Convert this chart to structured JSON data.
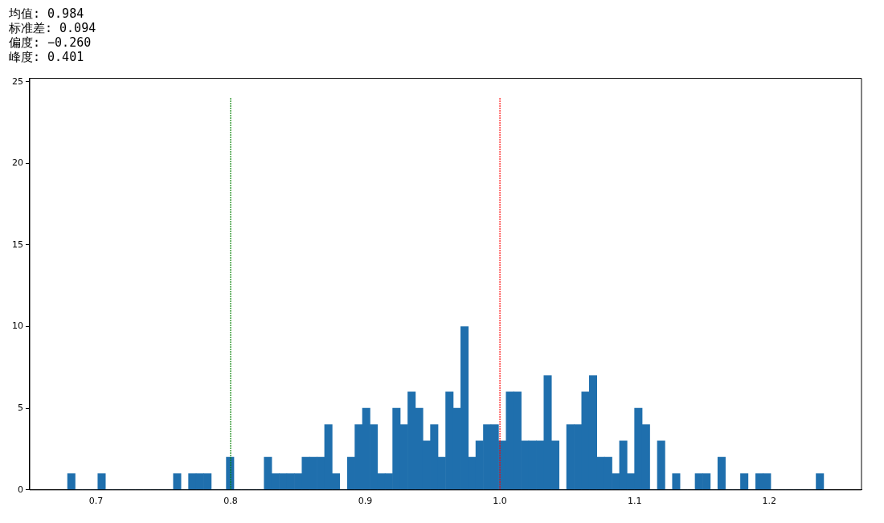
{
  "chart_data": {
    "type": "histogram",
    "annotations": [
      "均值: 0.984",
      "标准差: 0.094",
      "偏度: −0.260",
      "峰度: 0.401"
    ],
    "bins": [
      0.6789,
      0.6845,
      0.6901,
      0.6957,
      0.7014,
      0.707,
      0.7126,
      0.7182,
      0.7238,
      0.7294,
      0.7351,
      0.7407,
      0.7463,
      0.7519,
      0.7575,
      0.7631,
      0.7687,
      0.7744,
      0.78,
      0.7856,
      0.7912,
      0.7968,
      0.8024,
      0.808,
      0.8137,
      0.8193,
      0.8249,
      0.8305,
      0.8361,
      0.8417,
      0.8474,
      0.853,
      0.8586,
      0.8642,
      0.8698,
      0.8754,
      0.881,
      0.8867,
      0.8923,
      0.8979,
      0.9035,
      0.9091,
      0.9147,
      0.9203,
      0.926,
      0.9316,
      0.9372,
      0.9428,
      0.9484,
      0.954,
      0.9597,
      0.9653,
      0.9709,
      0.9765,
      0.9821,
      0.9877,
      0.9933,
      0.999,
      1.0046,
      1.0102,
      1.0158,
      1.0214,
      1.027,
      1.0326,
      1.0383,
      1.0439,
      1.0495,
      1.0551,
      1.0607,
      1.0663,
      1.072,
      1.0776,
      1.0832,
      1.0888,
      1.0944,
      1.1,
      1.1056,
      1.1113,
      1.1169,
      1.1225,
      1.1281,
      1.1337,
      1.1393,
      1.1449,
      1.1506,
      1.1562,
      1.1618,
      1.1674,
      1.173,
      1.1786,
      1.1843,
      1.1899,
      1.1955,
      1.2011,
      1.2067,
      1.2123,
      1.2179,
      1.2236,
      1.2292,
      1.2348,
      1.2404
    ],
    "values": [
      1,
      0,
      0,
      0,
      1,
      0,
      0,
      0,
      0,
      0,
      0,
      0,
      0,
      0,
      1,
      0,
      1,
      1,
      1,
      0,
      0,
      2,
      0,
      0,
      0,
      0,
      2,
      1,
      1,
      1,
      1,
      2,
      2,
      2,
      4,
      1,
      0,
      2,
      4,
      5,
      4,
      1,
      1,
      5,
      4,
      6,
      5,
      3,
      4,
      2,
      6,
      5,
      10,
      2,
      3,
      4,
      4,
      3,
      6,
      6,
      3,
      3,
      3,
      7,
      3,
      0,
      4,
      4,
      6,
      7,
      2,
      2,
      1,
      3,
      1,
      5,
      4,
      0,
      3,
      0,
      1,
      0,
      0,
      1,
      1,
      0,
      2,
      0,
      0,
      1,
      0,
      1,
      1,
      0,
      0,
      0,
      0,
      0,
      0,
      1
    ],
    "color": "#1f6fad",
    "xlim": [
      0.6508,
      1.2685
    ],
    "xticks": [
      0.7,
      0.8,
      0.9,
      {
        "value": 1.0,
        "label": "1.0"
      },
      1.1,
      1.2
    ],
    "ylim": [
      0,
      25.2
    ],
    "yticks": [
      0,
      5,
      10,
      15,
      20,
      25
    ],
    "ref_lines": [
      {
        "axis": "x",
        "value": 0.8,
        "color": "#008000",
        "line_style": "dotted"
      },
      {
        "axis": "x",
        "value": 1.0,
        "color": "#ff0000",
        "line_style": "dotted"
      }
    ],
    "grid": false,
    "legend": false
  }
}
